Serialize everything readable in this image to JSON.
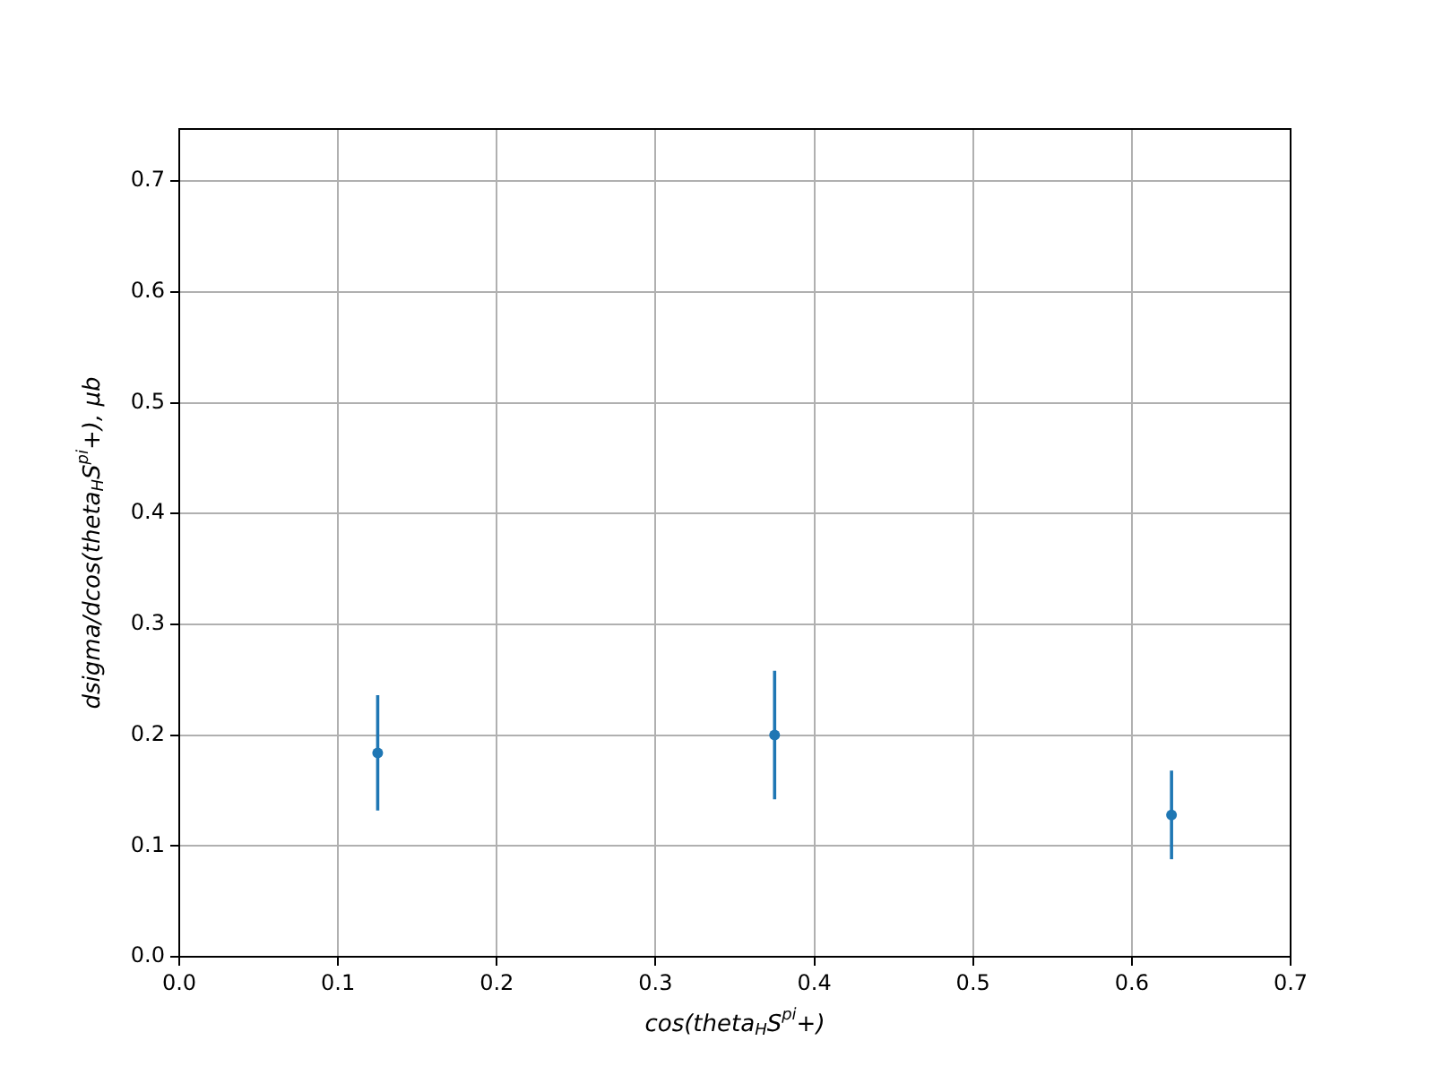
{
  "chart_data": {
    "type": "scatter",
    "xlabel": "cos(theta$_{H}$S$^{pi}$+)",
    "ylabel": "dsigma/dcos(theta$_{H}$S$^{pi}$+), μb",
    "x": [
      0.125,
      0.375,
      0.625
    ],
    "series": [
      {
        "color": "#1f77b4",
        "values": [
          0.184,
          0.2,
          0.128
        ],
        "errors": [
          0.052,
          0.058,
          0.04
        ]
      }
    ],
    "xlim": [
      0,
      0.7
    ],
    "xticks": [
      {
        "value": 0,
        "label": "0.0"
      },
      0.1,
      0.2,
      0.3,
      0.4,
      0.5,
      0.6,
      0.7
    ],
    "ylim": [
      0,
      0.747
    ],
    "yticks": [
      {
        "value": 0,
        "label": "0.0"
      },
      0.1,
      0.2,
      0.3,
      0.4,
      0.5,
      0.6,
      0.7
    ],
    "grid": true,
    "marker": "circle",
    "legend": false
  }
}
